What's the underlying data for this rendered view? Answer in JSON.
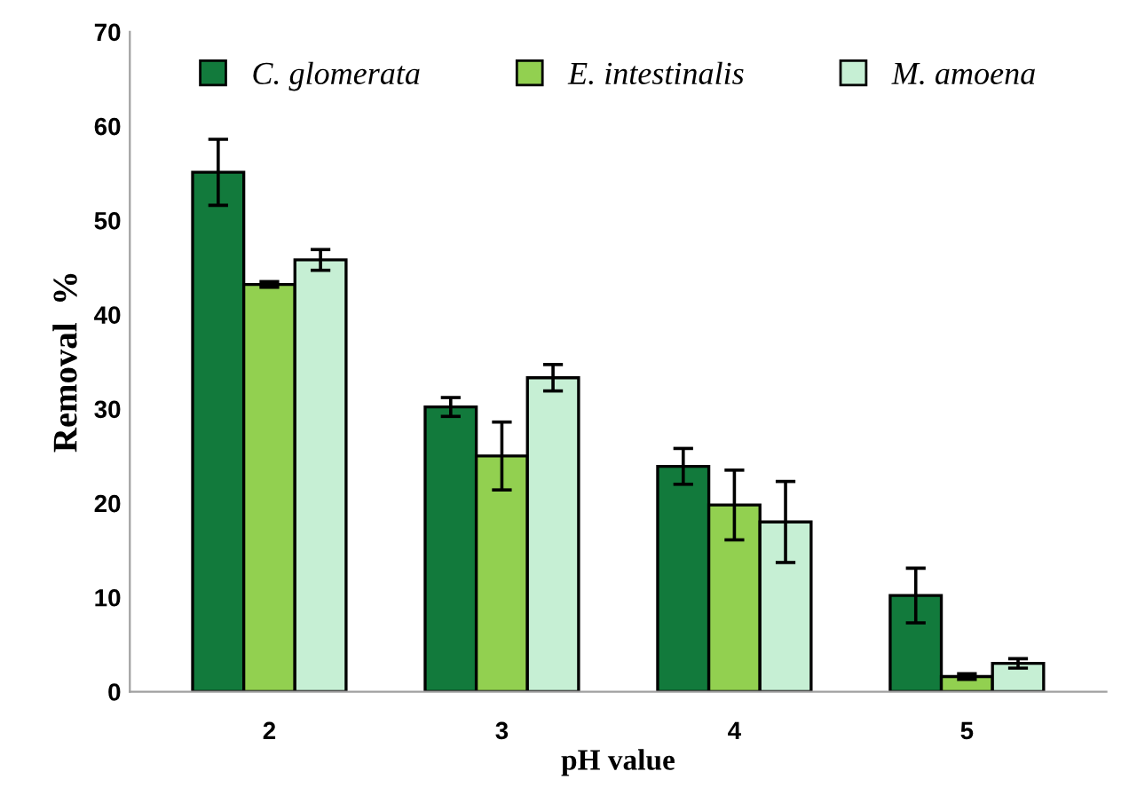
{
  "chart_data": {
    "type": "bar",
    "xlabel": "pH value",
    "ylabel": "Removal  %",
    "categories": [
      "2",
      "3",
      "4",
      "5"
    ],
    "series": [
      {
        "name": "C. glomerata",
        "color": "#127a3c",
        "values": [
          55.1,
          30.2,
          23.9,
          10.2
        ],
        "errors": [
          3.5,
          1.0,
          1.9,
          2.9
        ]
      },
      {
        "name": "E. intestinalis",
        "color": "#92d050",
        "values": [
          43.2,
          25.0,
          19.8,
          1.6
        ],
        "errors": [
          0.3,
          3.6,
          3.7,
          0.3
        ]
      },
      {
        "name": "M. amoena",
        "color": "#c6efd4",
        "values": [
          45.8,
          33.3,
          18.0,
          3.0
        ],
        "errors": [
          1.1,
          1.4,
          4.3,
          0.5
        ]
      }
    ],
    "ylim": [
      0,
      70
    ],
    "yticks": [
      0,
      10,
      20,
      30,
      40,
      50,
      60,
      70
    ],
    "grid": false,
    "legend": "top"
  }
}
